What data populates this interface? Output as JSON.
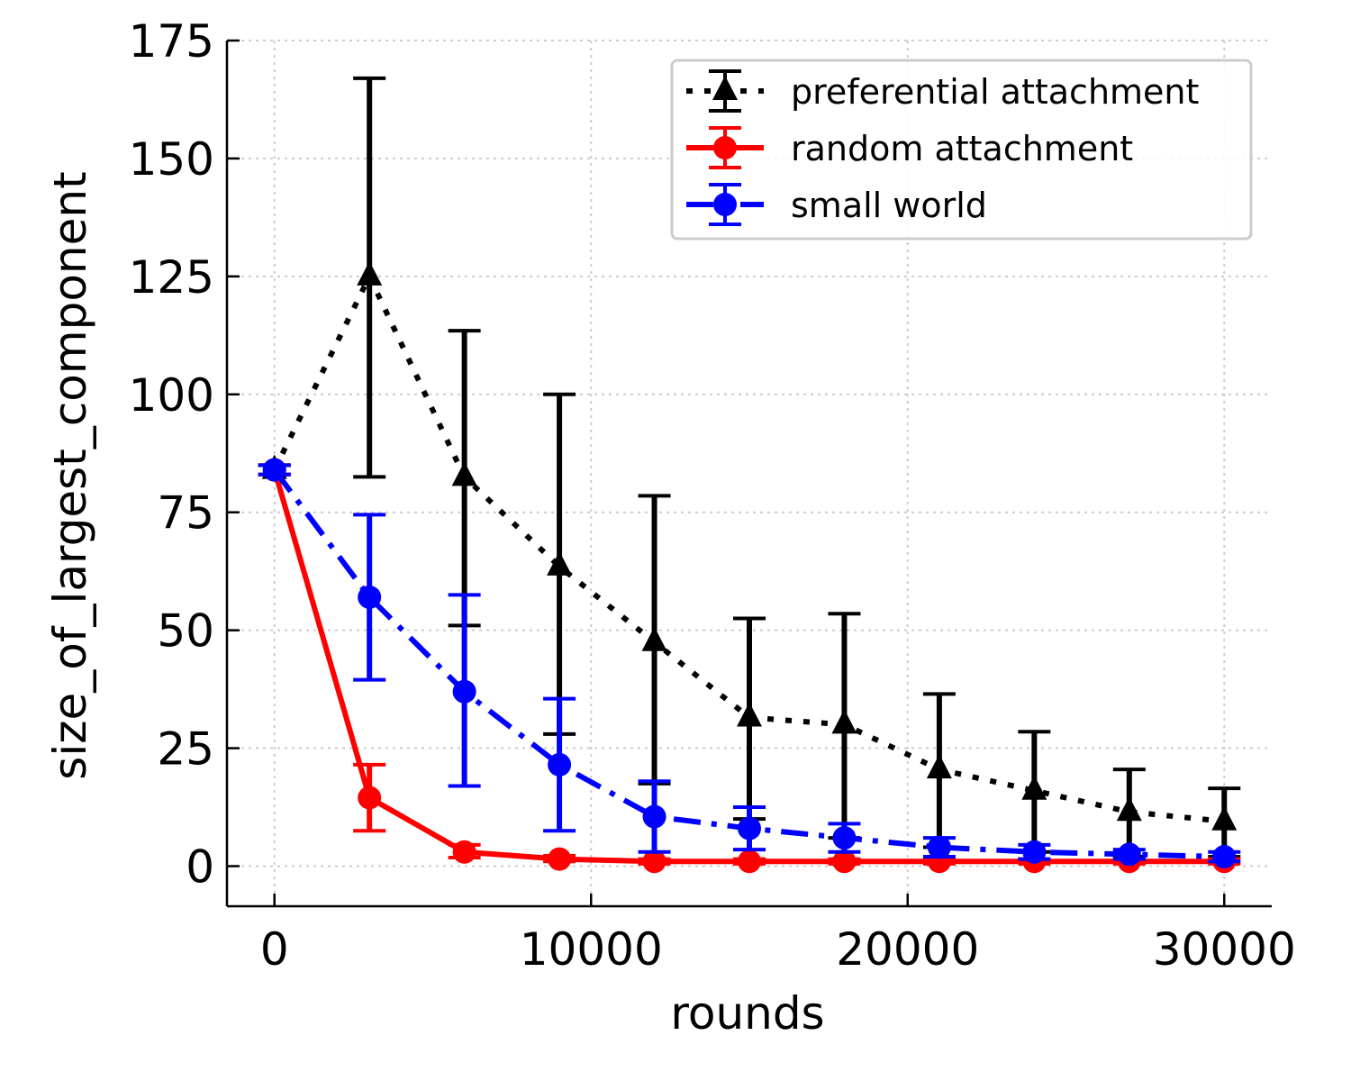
{
  "chart_data": {
    "type": "line",
    "title": "",
    "xlabel": "rounds",
    "ylabel": "size_of_largest_component",
    "xlim": [
      -1500,
      31500
    ],
    "ylim": [
      -8.5,
      175
    ],
    "xticks": [
      0,
      10000,
      20000,
      30000
    ],
    "xtick_labels": [
      "0",
      "10000",
      "20000",
      "30000"
    ],
    "yticks": [
      0,
      25,
      50,
      75,
      100,
      125,
      150,
      175
    ],
    "ytick_labels": [
      "0",
      "25",
      "50",
      "75",
      "100",
      "125",
      "150",
      "175"
    ],
    "grid": true,
    "legend_position": "top-right",
    "x": [
      0,
      3000,
      6000,
      9000,
      12000,
      15000,
      18000,
      21000,
      24000,
      27000,
      30000
    ],
    "series": [
      {
        "name": "preferential attachment",
        "color": "#000000",
        "line_style": "dotted",
        "marker": "triangle",
        "values": [
          84,
          125,
          82.5,
          63.5,
          47.5,
          31.5,
          30,
          20.5,
          16,
          11.5,
          9.5
        ],
        "err_low": [
          83,
          82.5,
          51,
          28,
          17.5,
          10,
          6,
          4,
          3,
          2,
          2
        ],
        "err_high": [
          85,
          167,
          113.5,
          100,
          78.5,
          52.5,
          53.5,
          36.5,
          28.5,
          20.5,
          16.5
        ]
      },
      {
        "name": "random attachment",
        "color": "#ff0000",
        "line_style": "solid",
        "marker": "circle",
        "values": [
          84,
          14.5,
          3,
          1.5,
          1,
          1,
          1,
          1,
          1,
          1,
          1
        ],
        "err_low": [
          83,
          7.5,
          1.8,
          1,
          0.5,
          0.5,
          0.5,
          0.5,
          0.5,
          0.5,
          0.5
        ],
        "err_high": [
          85,
          21.5,
          4.5,
          2.2,
          1.5,
          1.5,
          1.5,
          1.5,
          1.5,
          1.5,
          1.5
        ]
      },
      {
        "name": "small world",
        "color": "#0000ff",
        "line_style": "dashdot",
        "marker": "circle",
        "values": [
          84,
          57,
          37,
          21.5,
          10.5,
          8,
          6,
          4,
          3,
          2.5,
          2
        ],
        "err_low": [
          83,
          39.5,
          17,
          7.5,
          3,
          3.5,
          3,
          2,
          1.5,
          1.5,
          1
        ],
        "err_high": [
          85,
          74.5,
          57.5,
          35.5,
          18,
          12.5,
          9,
          6,
          4.5,
          3.5,
          3
        ]
      }
    ]
  }
}
